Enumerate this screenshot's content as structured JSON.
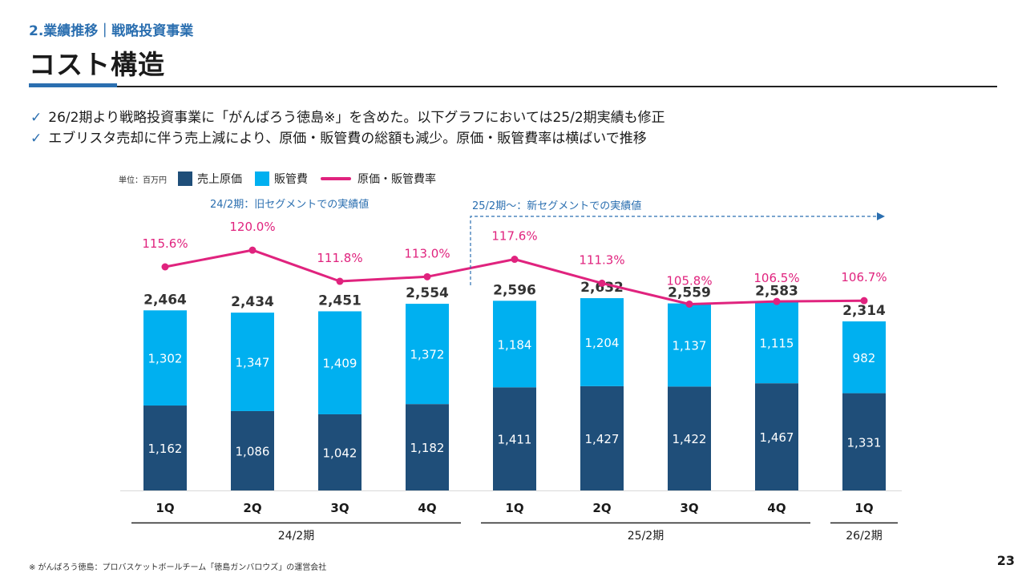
{
  "header": {
    "section": "2.業績推移｜戦略投資事業",
    "title": "コスト構造"
  },
  "bullets": [
    "26/2期より戦略投資事業に「がんばろう徳島※」を含めた。以下グラフにおいては25/2期実績も修正",
    "エブリスタ売却に伴う売上減により、原価・販管費の総額も減少。原価・販管費率は横ばいで推移"
  ],
  "legend": {
    "unit": "単位：百万円",
    "items": [
      "売上原価",
      "販管費",
      "原価・販管費率"
    ]
  },
  "colors": {
    "cost_of_sales": "#1f4e79",
    "sga": "#00b0f0",
    "ratio_line": "#e0237e",
    "accent": "#2b6fb0"
  },
  "chart_data": {
    "type": "bar",
    "stacked": true,
    "categories": [
      "1Q",
      "2Q",
      "3Q",
      "4Q",
      "1Q",
      "2Q",
      "3Q",
      "4Q",
      "1Q"
    ],
    "series": [
      {
        "name": "売上原価",
        "values": [
          1162,
          1086,
          1042,
          1182,
          1411,
          1427,
          1422,
          1467,
          1331
        ]
      },
      {
        "name": "販管費",
        "values": [
          1302,
          1347,
          1409,
          1372,
          1184,
          1204,
          1137,
          1115,
          982
        ]
      }
    ],
    "totals": [
      2464,
      2434,
      2451,
      2554,
      2596,
      2632,
      2559,
      2583,
      2314
    ],
    "total_labels": [
      "2,464",
      "2,434",
      "2,451",
      "2,554",
      "2,596",
      "2,632",
      "2,559",
      "2,583",
      "2,314"
    ],
    "cost_labels": [
      "1,162",
      "1,086",
      "1,042",
      "1,182",
      "1,411",
      "1,427",
      "1,422",
      "1,467",
      "1,331"
    ],
    "sga_labels": [
      "1,302",
      "1,347",
      "1,409",
      "1,372",
      "1,184",
      "1,204",
      "1,137",
      "1,115",
      "982"
    ],
    "ratio": {
      "name": "原価・販管費率",
      "values": [
        115.6,
        120.0,
        111.8,
        113.0,
        117.6,
        111.3,
        105.8,
        106.5,
        106.7
      ],
      "labels": [
        "115.6%",
        "120.0%",
        "111.8%",
        "113.0%",
        "117.6%",
        "111.3%",
        "105.8%",
        "106.5%",
        "106.7%"
      ]
    },
    "periods": [
      {
        "label": "24/2期",
        "start": 0,
        "end": 3
      },
      {
        "label": "25/2期",
        "start": 4,
        "end": 7
      },
      {
        "label": "26/2期",
        "start": 8,
        "end": 8
      }
    ],
    "annotations": {
      "old_segment": "24/2期：旧セグメントでの実績値",
      "new_segment": "25/2期～：新セグメントでの実績値"
    },
    "ylim": [
      0,
      4000
    ],
    "ratio_ylim": [
      0,
      200
    ],
    "grid": false,
    "legend_position": "top-left"
  },
  "footer": {
    "note": "※ がんばろう徳島：プロバスケットボールチーム「徳島ガンバロウズ」の運営会社",
    "page": "23"
  }
}
